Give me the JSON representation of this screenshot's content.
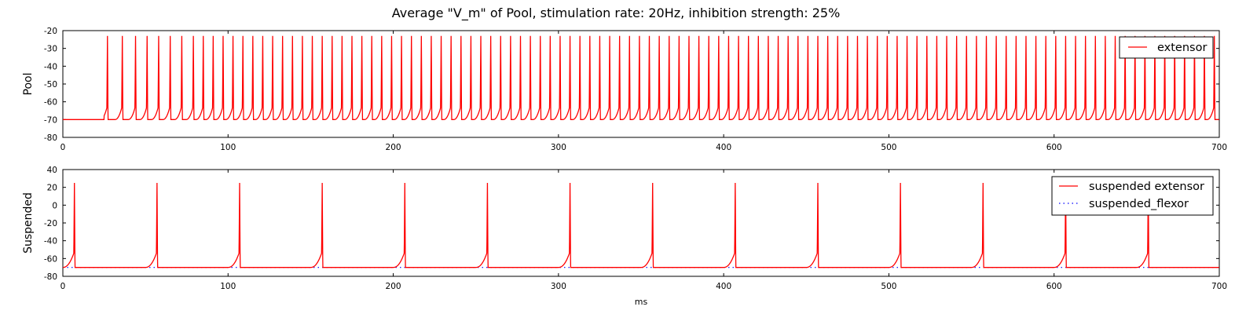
{
  "figure": {
    "title": "Average \"V_m\" of Pool, stimulation rate: 20Hz, inhibition strength: 25%",
    "series_colors": {
      "extensor": "#ff0000",
      "flexor": "#0000ff"
    }
  },
  "chart_data": [
    {
      "type": "line",
      "ylabel": "Pool",
      "xlabel": "",
      "xlim": [
        0,
        700
      ],
      "ylim": [
        -80,
        -20
      ],
      "xticks": [
        "0",
        "100",
        "200",
        "300",
        "400",
        "500",
        "600",
        "700"
      ],
      "yticks": [
        "-20",
        "-30",
        "-40",
        "-50",
        "-60",
        "-70",
        "-80"
      ],
      "legend_position": "top-right",
      "grid": false,
      "series": [
        {
          "name": "extensor",
          "color": "#ff0000",
          "style": "solid",
          "resting_mV": -70,
          "peak_mV": -23,
          "onset_ms": 25,
          "spike_times_ms": [
            27,
            36,
            44,
            51,
            58,
            65,
            72,
            79,
            85,
            91,
            97,
            103,
            109,
            115,
            121,
            127,
            133,
            139,
            145,
            151,
            157,
            163,
            169,
            175,
            181,
            187,
            193,
            199,
            205,
            211,
            217,
            223,
            229,
            235,
            241,
            247,
            253,
            259,
            265,
            271,
            277,
            283,
            289,
            295,
            301,
            307,
            313,
            319,
            325,
            331,
            337,
            343,
            349,
            355,
            361,
            367,
            373,
            379,
            385,
            391,
            397,
            403,
            409,
            415,
            421,
            427,
            433,
            439,
            445,
            451,
            457,
            463,
            469,
            475,
            481,
            487,
            493,
            499,
            505,
            511,
            517,
            523,
            529,
            535,
            541,
            547,
            553,
            559,
            565,
            571,
            577,
            583,
            589,
            595,
            601,
            607,
            613,
            619,
            625,
            631,
            637,
            643,
            649,
            655,
            661,
            667,
            673,
            679,
            685,
            691,
            697
          ]
        }
      ]
    },
    {
      "type": "line",
      "ylabel": "Suspended",
      "xlabel": "ms",
      "xlim": [
        0,
        700
      ],
      "ylim": [
        -80,
        40
      ],
      "xticks": [
        "0",
        "100",
        "200",
        "300",
        "400",
        "500",
        "600",
        "700"
      ],
      "yticks": [
        "40",
        "20",
        "0",
        "-20",
        "-40",
        "-60",
        "-80"
      ],
      "legend_position": "top-right",
      "grid": false,
      "series": [
        {
          "name": "suspended extensor",
          "color": "#ff0000",
          "style": "solid",
          "resting_mV": -70,
          "peak_mV": 25,
          "spike_times_ms": [
            7,
            57,
            107,
            157,
            207,
            257,
            307,
            357,
            407,
            457,
            507,
            557,
            607,
            657
          ]
        },
        {
          "name": "suspended_flexor",
          "color": "#0000ff",
          "style": "dotted",
          "constant_mV": -70
        }
      ]
    }
  ]
}
